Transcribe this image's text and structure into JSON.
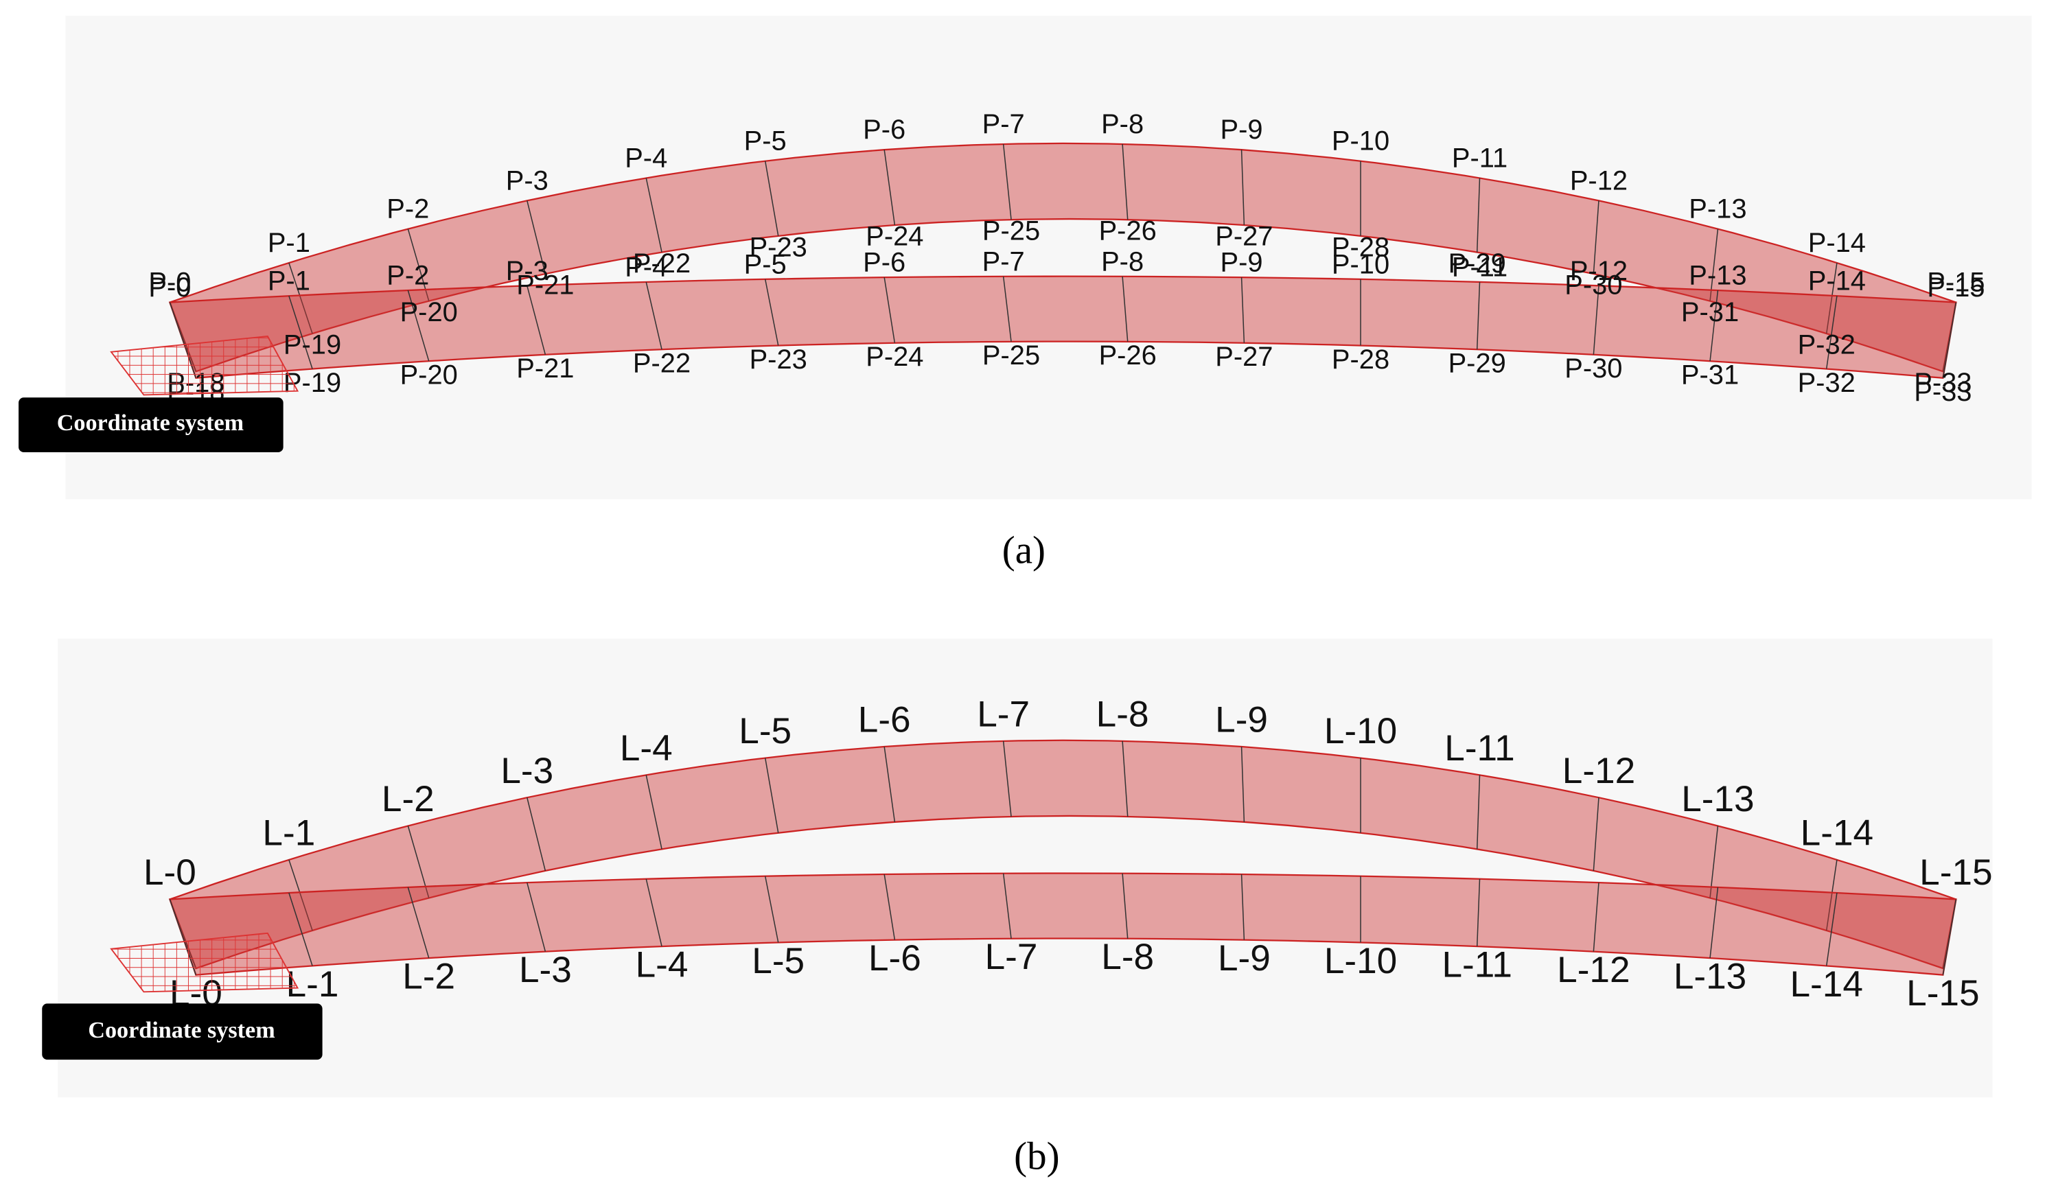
{
  "panels": [
    {
      "caption": "(a)",
      "button": "Coordinate system",
      "arch_top": [
        "P-0",
        "P-1",
        "P-2",
        "P-3",
        "P-4",
        "P-5",
        "P-6",
        "P-7",
        "P-8",
        "P-9",
        "P-10",
        "P-11",
        "P-12",
        "P-13",
        "P-14",
        "P-15"
      ],
      "arch_inner": [
        "P-18",
        "P-19",
        "P-20",
        "P-21",
        "P-22",
        "P-23",
        "P-24",
        "P-25",
        "P-26",
        "P-27",
        "P-28",
        "P-29",
        "P-30",
        "P-31",
        "P-32",
        "P-33"
      ],
      "deck_top": [
        "P-0",
        "P-1",
        "P-2",
        "P-3",
        "P-4",
        "P-5",
        "P-6",
        "P-7",
        "P-8",
        "P-9",
        "P-10",
        "P-11",
        "P-12",
        "P-13",
        "P-14",
        "P-15"
      ],
      "deck_bottom": [
        "P-18",
        "P-19",
        "P-20",
        "P-21",
        "P-22",
        "P-23",
        "P-24",
        "P-25",
        "P-26",
        "P-27",
        "P-28",
        "P-29",
        "P-30",
        "P-31",
        "P-32",
        "P-33"
      ]
    },
    {
      "caption": "(b)",
      "button": "Coordinate system",
      "arch_top": [
        "L-0",
        "L-1",
        "L-2",
        "L-3",
        "L-4",
        "L-5",
        "L-6",
        "L-7",
        "L-8",
        "L-9",
        "L-10",
        "L-11",
        "L-12",
        "L-13",
        "L-14",
        "L-15"
      ],
      "deck_bottom": [
        "L-0",
        "L-1",
        "L-2",
        "L-3",
        "L-4",
        "L-5",
        "L-6",
        "L-7",
        "L-8",
        "L-9",
        "L-10",
        "L-11",
        "L-12",
        "L-13",
        "L-14",
        "L-15"
      ]
    }
  ]
}
